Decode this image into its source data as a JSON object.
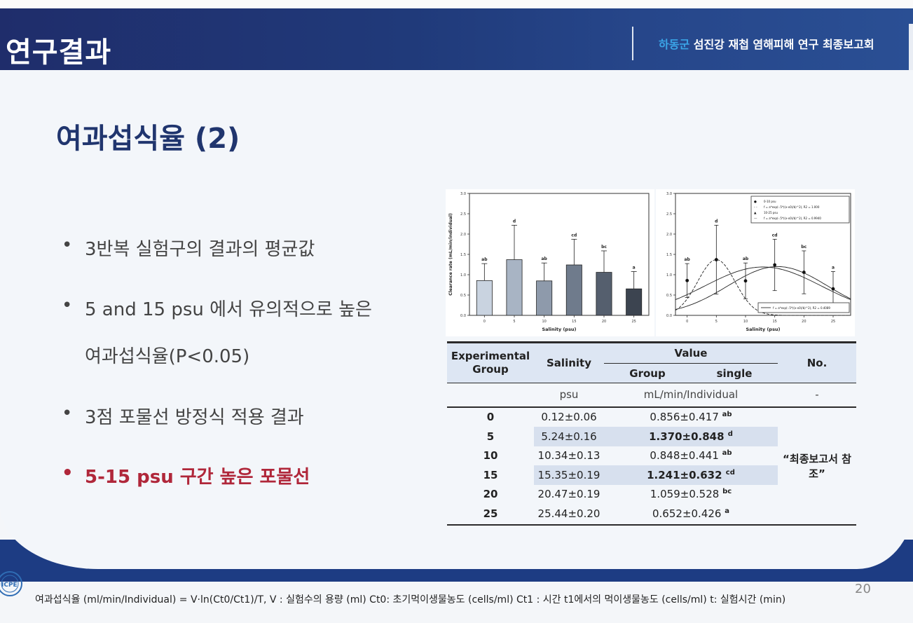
{
  "header": {
    "title": "연구결과",
    "subtitle_accent": "하동군",
    "subtitle_rest": " 섬진강 재첩 염해피해 연구 최종보고회"
  },
  "section_title": "여과섭식율 (2)",
  "bullets": [
    {
      "dot": "•",
      "text": "3반복 실험구의 결과의 평균값"
    },
    {
      "dot": "•",
      "text": "5 and 15 psu 에서 유의적으로 높은"
    },
    {
      "dot": "",
      "text": "여과섭식율(P<0.05)"
    },
    {
      "dot": "•",
      "text": "3점 포물선 방정식 적용 결과"
    },
    {
      "dot": "•",
      "text": "5-15 psu 구간 높은 포물선"
    }
  ],
  "chart_data": [
    {
      "type": "bar",
      "categories": [
        "0",
        "5",
        "10",
        "15",
        "20",
        "25"
      ],
      "values": [
        0.856,
        1.37,
        0.848,
        1.241,
        1.059,
        0.652
      ],
      "errors": [
        0.417,
        0.848,
        0.441,
        0.632,
        0.528,
        0.426
      ],
      "letters": [
        "ab",
        "d",
        "ab",
        "cd",
        "bc",
        "a"
      ],
      "xlabel": "Salinity (psu)",
      "ylabel": "Clearance rate (mL/min/individual)",
      "ylim": [
        0,
        3.0
      ],
      "yticks": [
        "0.0",
        "0.5",
        "1.0",
        "1.5",
        "2.0",
        "2.5",
        "3.0"
      ],
      "colors": [
        "#c9d3e0",
        "#a8b4c4",
        "#8e9aab",
        "#6f7b8c",
        "#555f6e",
        "#3c4450"
      ]
    },
    {
      "type": "scatter",
      "x": [
        0,
        5,
        10,
        15,
        20,
        25
      ],
      "y": [
        0.856,
        1.37,
        0.848,
        1.241,
        1.059,
        0.652
      ],
      "errors": [
        0.417,
        0.848,
        0.441,
        0.632,
        0.528,
        0.426
      ],
      "letters": [
        "ab",
        "d",
        "ab",
        "cd",
        "bc",
        "a"
      ],
      "xlabel": "Salinity (psu)",
      "ylabel": "",
      "ylim": [
        0,
        3.0
      ],
      "xticks": [
        "0",
        "5",
        "10",
        "15",
        "20",
        "25"
      ],
      "yticks": [
        "0.0",
        "0.5",
        "1.0",
        "1.5",
        "2.0",
        "2.5",
        "3.0"
      ],
      "legend_top": [
        {
          "marker": "●",
          "label": "0-10 psu"
        },
        {
          "marker": "- -",
          "label": "f = a*exp(-.5*((x-x0)/b)^2), R2 = 1.000"
        },
        {
          "marker": "▲",
          "label": "10-25 psu"
        },
        {
          "marker": "—",
          "label": "f = a*exp(-.5*((x-x0)/b)^2), R2 = 0.9940"
        }
      ],
      "legend_bottom": {
        "label": "f = a*exp(-.5*((x-x0)/b)^2), R2 = 0.4089"
      }
    }
  ],
  "table": {
    "h_exp": "Experimental",
    "h_group": "Group",
    "h_salinity": "Salinity",
    "h_value": "Value",
    "h_value_group": "Group",
    "h_value_single": "single",
    "h_no": "No.",
    "u_psu": "psu",
    "u_rate": "mL/min/Individual",
    "u_dash": "-",
    "rows": [
      {
        "group": "0",
        "sal": "0.12±0.06",
        "val": "0.856±0.417",
        "sup": "ab"
      },
      {
        "group": "5",
        "sal": "5.24±0.16",
        "val": "1.370±0.848",
        "sup": "d"
      },
      {
        "group": "10",
        "sal": "10.34±0.13",
        "val": "0.848±0.441",
        "sup": "ab"
      },
      {
        "group": "15",
        "sal": "15.35±0.19",
        "val": "1.241±0.632",
        "sup": "cd"
      },
      {
        "group": "20",
        "sal": "20.47±0.19",
        "val": "1.059±0.528",
        "sup": "bc"
      },
      {
        "group": "25",
        "sal": "25.44±0.20",
        "val": "0.652±0.426",
        "sup": "a"
      }
    ],
    "note": "“최종보고서 참조”"
  },
  "footer": "여과섭식율 (ml/min/Individual) = V·ln(Ct0/Ct1)/T, V : 실험수의 용량 (ml) Ct0: 초기먹이생물농도 (cells/ml) Ct1 : 시간 t1에서의 먹이생물농도 (cells/ml) t: 실험시간 (min)",
  "page_number": "20",
  "logo_text": "ICPE"
}
